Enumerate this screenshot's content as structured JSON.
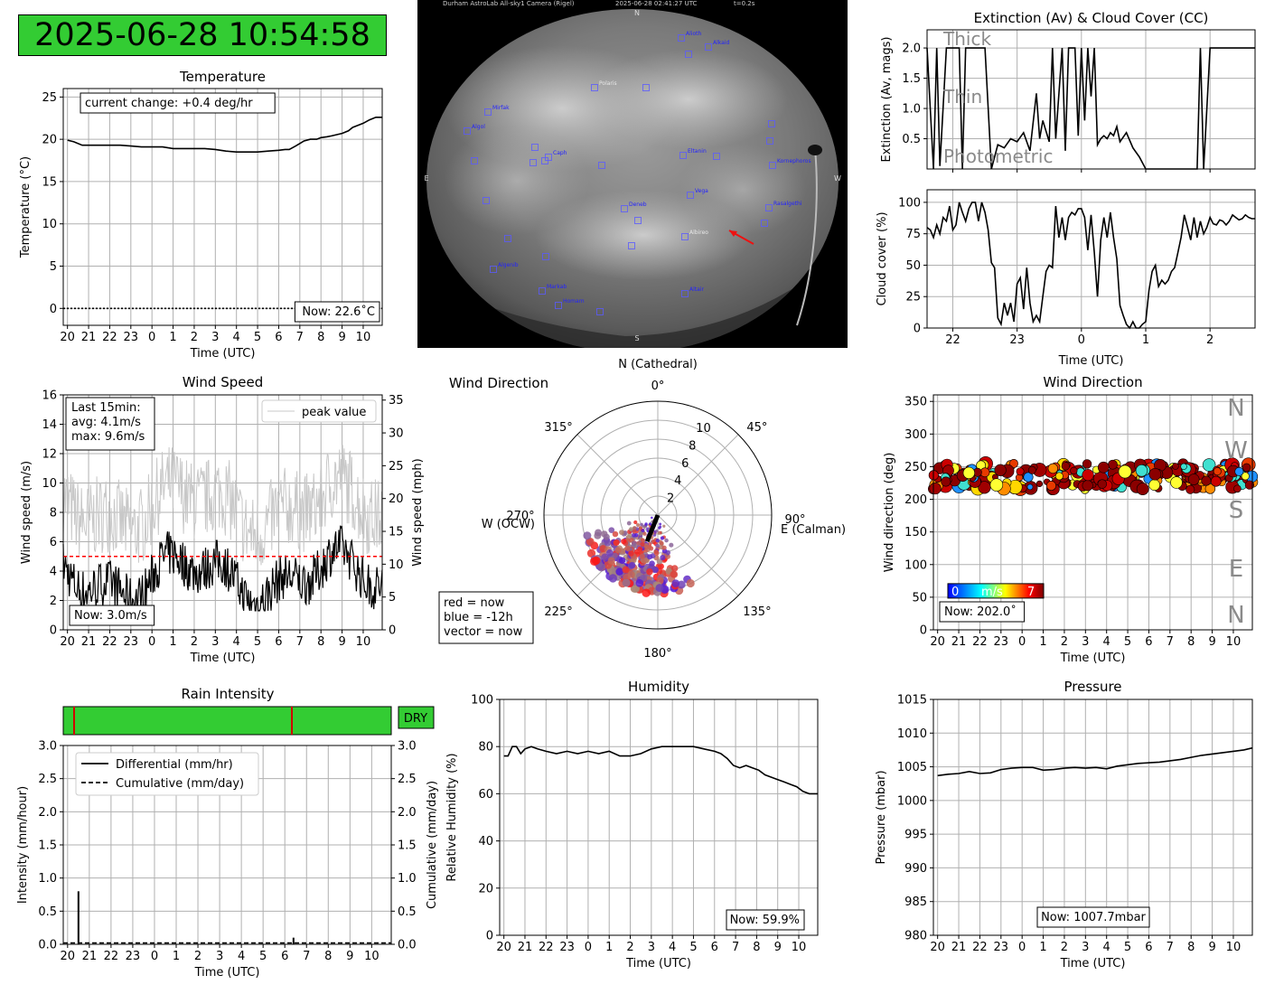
{
  "clock": {
    "text": "2025-06-28 10:54:58",
    "color": "#33cc33"
  },
  "allsky": {
    "header_left": "Durham AstroLab All-sky1 Camera (Rigel)",
    "header_time": "2025-06-28 02:41:27 UTC",
    "header_exp": "t=0.2s",
    "compass": {
      "n": "N",
      "s": "S",
      "e": "E",
      "w": "W"
    },
    "stars": [
      "Alioth",
      "Alkaid",
      "Mirfak",
      "Algol",
      "Polaris",
      "Caph",
      "Eltanin",
      "Kornephoros",
      "Vega",
      "Deneb",
      "Rasalgethi",
      "Albireo",
      "Algenib",
      "Markab",
      "Homam",
      "Altair"
    ]
  },
  "time_ticks": [
    "20",
    "21",
    "22",
    "23",
    "0",
    "1",
    "2",
    "3",
    "4",
    "5",
    "6",
    "7",
    "8",
    "9",
    "10"
  ],
  "temperature": {
    "chart_data": {
      "type": "line",
      "title": "Temperature",
      "xlabel": "Time (UTC)",
      "ylabel": "Temperature (°C)",
      "ylim": [
        -2,
        26
      ],
      "yticks": [
        0,
        5,
        10,
        15,
        20,
        25
      ],
      "x": [
        -4.0,
        -3.7,
        -3.3,
        -3.0,
        -2.5,
        -2.0,
        -1.5,
        -1.0,
        -0.5,
        0,
        0.5,
        1.0,
        1.5,
        2.0,
        2.5,
        3.0,
        3.5,
        4.0,
        4.5,
        5.0,
        5.5,
        6.0,
        6.3,
        6.5,
        6.8,
        7.0,
        7.2,
        7.5,
        7.8,
        8.0,
        8.3,
        8.5,
        9.0,
        9.3,
        9.5,
        9.8,
        10.0,
        10.3,
        10.6,
        10.9
      ],
      "values": [
        19.9,
        19.7,
        19.3,
        19.3,
        19.3,
        19.3,
        19.3,
        19.2,
        19.1,
        19.1,
        19.1,
        18.9,
        18.9,
        18.9,
        18.9,
        18.8,
        18.6,
        18.5,
        18.5,
        18.5,
        18.6,
        18.7,
        18.8,
        18.8,
        19.2,
        19.5,
        19.8,
        20.0,
        20.0,
        20.2,
        20.3,
        20.4,
        20.7,
        21.0,
        21.4,
        21.7,
        21.9,
        22.3,
        22.6,
        22.6
      ],
      "zero_line": "dotted",
      "grid": true
    },
    "change_label": "current change: +0.4 deg/hr",
    "now_label": "Now: 22.6˚C"
  },
  "extinction": {
    "chart_data": {
      "type": "line",
      "title": "Extinction (Av) & Cloud Cover (CC)",
      "ylabel": "Extinction (Av, mags)",
      "ylim": [
        0,
        2.3
      ],
      "yticks": [
        0.5,
        1.0,
        1.5,
        2.0
      ],
      "xlim": [
        -2.4,
        2.7
      ],
      "x": [
        -2.4,
        -2.3,
        -2.25,
        -2.2,
        -2.1,
        -2.0,
        -1.9,
        -1.85,
        -1.8,
        -1.7,
        -1.6,
        -1.5,
        -1.4,
        -1.3,
        -1.2,
        -1.1,
        -1.0,
        -0.9,
        -0.8,
        -0.7,
        -0.65,
        -0.6,
        -0.5,
        -0.45,
        -0.4,
        -0.3,
        -0.25,
        -0.2,
        -0.1,
        -0.05,
        0.0,
        0.05,
        0.1,
        0.15,
        0.2,
        0.25,
        0.3,
        0.35,
        0.4,
        0.45,
        0.5,
        0.55,
        0.6,
        0.7,
        0.8,
        0.9,
        1.0,
        1.1,
        1.2,
        1.3,
        1.4,
        1.5,
        1.6,
        1.7,
        1.8,
        1.85,
        1.9,
        2.0,
        2.1,
        2.2,
        2.3,
        2.4,
        2.5,
        2.6,
        2.7
      ],
      "values": [
        2.0,
        0.0,
        2.0,
        0.05,
        2.0,
        2.0,
        2.0,
        0.0,
        2.0,
        2.0,
        2.0,
        2.0,
        0.0,
        0.4,
        0.35,
        0.5,
        0.45,
        0.6,
        0.3,
        1.25,
        0.5,
        0.8,
        0.45,
        2.0,
        0.5,
        2.0,
        0.3,
        2.0,
        2.0,
        0.55,
        2.0,
        0.8,
        2.0,
        1.2,
        2.0,
        0.4,
        0.5,
        0.55,
        0.5,
        0.6,
        0.55,
        0.7,
        0.45,
        0.6,
        0.35,
        0.2,
        0.0,
        0.0,
        0.0,
        0.0,
        0.0,
        0.0,
        0.0,
        0.0,
        0.0,
        2.0,
        0.0,
        2.0,
        2.0,
        2.0,
        2.0,
        2.0,
        2.0,
        2.0,
        2.0
      ],
      "band_labels": [
        "Thick",
        "Thin",
        "Photometric"
      ],
      "grid": true
    }
  },
  "cloud": {
    "chart_data": {
      "type": "line",
      "xlabel": "Time (UTC)",
      "ylabel": "Cloud cover (%)",
      "ylim": [
        0,
        110
      ],
      "yticks": [
        0,
        25,
        50,
        75,
        100
      ],
      "xlim": [
        -2.4,
        2.7
      ],
      "xticks": [
        "22",
        "23",
        "0",
        "1",
        "2"
      ],
      "x": [
        -2.4,
        -2.35,
        -2.3,
        -2.25,
        -2.2,
        -2.15,
        -2.1,
        -2.05,
        -2.0,
        -1.95,
        -1.9,
        -1.85,
        -1.8,
        -1.75,
        -1.7,
        -1.65,
        -1.6,
        -1.55,
        -1.5,
        -1.45,
        -1.4,
        -1.35,
        -1.3,
        -1.25,
        -1.2,
        -1.15,
        -1.1,
        -1.05,
        -1.0,
        -0.95,
        -0.9,
        -0.85,
        -0.8,
        -0.75,
        -0.7,
        -0.65,
        -0.6,
        -0.55,
        -0.5,
        -0.45,
        -0.4,
        -0.35,
        -0.3,
        -0.25,
        -0.2,
        -0.15,
        -0.1,
        -0.05,
        0.0,
        0.05,
        0.1,
        0.15,
        0.2,
        0.25,
        0.3,
        0.35,
        0.4,
        0.45,
        0.5,
        0.55,
        0.6,
        0.65,
        0.7,
        0.75,
        0.8,
        0.85,
        0.9,
        0.95,
        1.0,
        1.05,
        1.1,
        1.15,
        1.2,
        1.25,
        1.3,
        1.35,
        1.4,
        1.45,
        1.5,
        1.55,
        1.6,
        1.65,
        1.7,
        1.75,
        1.8,
        1.85,
        1.9,
        1.95,
        2.0,
        2.05,
        2.1,
        2.15,
        2.2,
        2.25,
        2.3,
        2.35,
        2.4,
        2.45,
        2.5,
        2.55,
        2.6,
        2.65,
        2.7
      ],
      "values": [
        80,
        78,
        72,
        82,
        75,
        88,
        85,
        97,
        78,
        82,
        100,
        92,
        85,
        95,
        100,
        100,
        85,
        100,
        92,
        78,
        52,
        48,
        8,
        3,
        20,
        10,
        20,
        5,
        35,
        40,
        15,
        48,
        20,
        5,
        10,
        5,
        25,
        45,
        50,
        48,
        97,
        72,
        88,
        70,
        88,
        92,
        90,
        95,
        95,
        88,
        62,
        90,
        60,
        25,
        70,
        88,
        72,
        92,
        72,
        55,
        18,
        10,
        3,
        0,
        5,
        0,
        0,
        3,
        5,
        30,
        45,
        50,
        33,
        38,
        35,
        38,
        45,
        48,
        60,
        72,
        90,
        80,
        70,
        88,
        72,
        85,
        75,
        80,
        88,
        83,
        82,
        86,
        85,
        82,
        85,
        90,
        88,
        86,
        87,
        90,
        88,
        87,
        87
      ],
      "grid": true
    }
  },
  "wind_speed": {
    "chart_data": {
      "type": "line",
      "title": "Wind Speed",
      "xlabel": "Time (UTC)",
      "ylabel": "Wind speed (m/s)",
      "ylabel_right": "Wind speed (mph)",
      "ylim": [
        0,
        16
      ],
      "yticks": [
        0,
        2,
        4,
        6,
        8,
        10,
        12,
        14,
        16
      ],
      "yticks_right": [
        0,
        5,
        10,
        15,
        20,
        25,
        30,
        35
      ],
      "series": [
        {
          "name": "peak value",
          "color": "#c8c8c8"
        },
        {
          "color": "#000000"
        }
      ],
      "threshold": 5.0,
      "grid": true
    },
    "stats_lines": [
      "Last 15min:",
      "avg: 4.1m/s",
      "max: 9.6m/s"
    ],
    "now_label": "Now: 3.0m/s"
  },
  "wind_polar": {
    "chart_data": {
      "type": "scatter",
      "title": "Wind Direction",
      "projection": "polar",
      "rticks": [
        "2",
        "4",
        "6",
        "8",
        "10"
      ],
      "angle_labels": [
        "0°",
        "45°",
        "90°",
        "135°",
        "180°",
        "225°",
        "270°",
        "315°"
      ],
      "direction_labels": {
        "n": "N (Cathedral)",
        "e": "E (Calman)",
        "s": "S",
        "w": "W (OCW)"
      },
      "now_vector_deg": 202
    },
    "legend_lines": [
      "red = now",
      "blue = -12h",
      "vector = now"
    ]
  },
  "wind_dir": {
    "chart_data": {
      "type": "scatter",
      "title": "Wind Direction",
      "xlabel": "Time (UTC)",
      "ylabel": "Wind direction (deg)",
      "ylim": [
        0,
        360
      ],
      "yticks": [
        0,
        50,
        100,
        150,
        200,
        250,
        300,
        350
      ],
      "compass_labels": [
        "N",
        "W",
        "S",
        "E",
        "N"
      ],
      "colorbar": {
        "min": "0",
        "label": "m/s",
        "max": "7"
      },
      "grid": true
    },
    "now_label": "Now: 202.0˚"
  },
  "rain": {
    "chart_data": {
      "type": "line",
      "title": "Rain Intensity",
      "xlabel": "Time (UTC)",
      "ylabel": "Intensity (mm/hour)",
      "ylabel_right": "Cumulative (mm/day)",
      "ylim": [
        0,
        3.0
      ],
      "yticks": [
        "0.0",
        "0.5",
        "1.0",
        "1.5",
        "2.0",
        "2.5",
        "3.0"
      ],
      "series": [
        {
          "name": "Differential (mm/hr)",
          "style": "solid"
        },
        {
          "name": "Cumulative (mm/day)",
          "style": "dashed"
        }
      ],
      "spikes": [
        {
          "x": -3.5,
          "y": 0.8
        },
        {
          "x": 6.4,
          "y": 0.1
        }
      ],
      "grid": true
    },
    "status_label": "DRY",
    "status_color": "#33cc33"
  },
  "humidity": {
    "chart_data": {
      "type": "line",
      "title": "Humidity",
      "xlabel": "Time (UTC)",
      "ylabel": "Relative Humidity (%)",
      "ylim": [
        0,
        100
      ],
      "yticks": [
        0,
        20,
        40,
        60,
        80,
        100
      ],
      "x": [
        -4.0,
        -3.8,
        -3.6,
        -3.4,
        -3.2,
        -3.0,
        -2.7,
        -2.4,
        -2.0,
        -1.5,
        -1.0,
        -0.5,
        0,
        0.5,
        1.0,
        1.5,
        2.0,
        2.5,
        3.0,
        3.5,
        4.0,
        4.5,
        5.0,
        5.5,
        6.0,
        6.3,
        6.6,
        6.9,
        7.2,
        7.5,
        7.8,
        8.1,
        8.4,
        8.7,
        9.0,
        9.3,
        9.6,
        9.9,
        10.2,
        10.5,
        10.9
      ],
      "values": [
        76,
        76,
        80,
        80,
        77,
        79,
        80,
        79,
        78,
        77,
        78,
        77,
        78,
        77,
        78,
        76,
        76,
        77,
        79,
        80,
        80,
        80,
        80,
        79,
        78,
        77,
        75,
        72,
        71,
        72,
        71,
        70,
        68,
        67,
        66,
        65,
        64,
        63,
        61,
        60,
        60
      ],
      "grid": true
    },
    "now_label": "Now: 59.9%"
  },
  "pressure": {
    "chart_data": {
      "type": "line",
      "title": "Pressure",
      "xlabel": "Time (UTC)",
      "ylabel": "Pressure (mbar)",
      "ylim": [
        980,
        1015
      ],
      "yticks": [
        980,
        985,
        990,
        995,
        1000,
        1005,
        1010,
        1015
      ],
      "x": [
        -4.0,
        -3.5,
        -3.0,
        -2.5,
        -2.0,
        -1.5,
        -1.0,
        -0.5,
        0,
        0.5,
        1.0,
        1.5,
        2.0,
        2.5,
        3.0,
        3.5,
        4.0,
        4.5,
        5.0,
        5.5,
        6.0,
        6.5,
        7.0,
        7.5,
        8.0,
        8.5,
        9.0,
        9.5,
        10.0,
        10.5,
        10.9
      ],
      "values": [
        1003.7,
        1003.9,
        1004.0,
        1004.3,
        1004.0,
        1004.1,
        1004.6,
        1004.8,
        1004.9,
        1004.9,
        1004.5,
        1004.6,
        1004.8,
        1004.9,
        1004.8,
        1004.9,
        1004.7,
        1005.1,
        1005.3,
        1005.5,
        1005.6,
        1005.7,
        1005.9,
        1006.1,
        1006.4,
        1006.7,
        1006.9,
        1007.1,
        1007.3,
        1007.5,
        1007.8
      ],
      "grid": true
    },
    "now_label": "Now: 1007.7mbar"
  }
}
